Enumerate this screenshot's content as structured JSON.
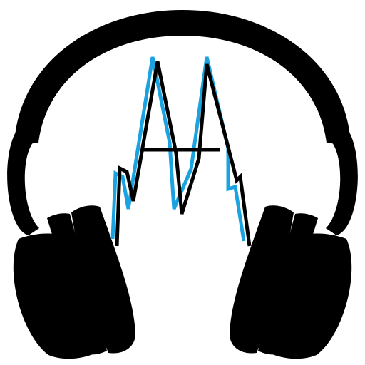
{
  "logo": {
    "name": "headphones-soundwave-logo",
    "colors": {
      "background": "#ffffff",
      "headphones": "#000000",
      "wave_primary": "#000000",
      "wave_accent": "#1aa3e0"
    }
  }
}
